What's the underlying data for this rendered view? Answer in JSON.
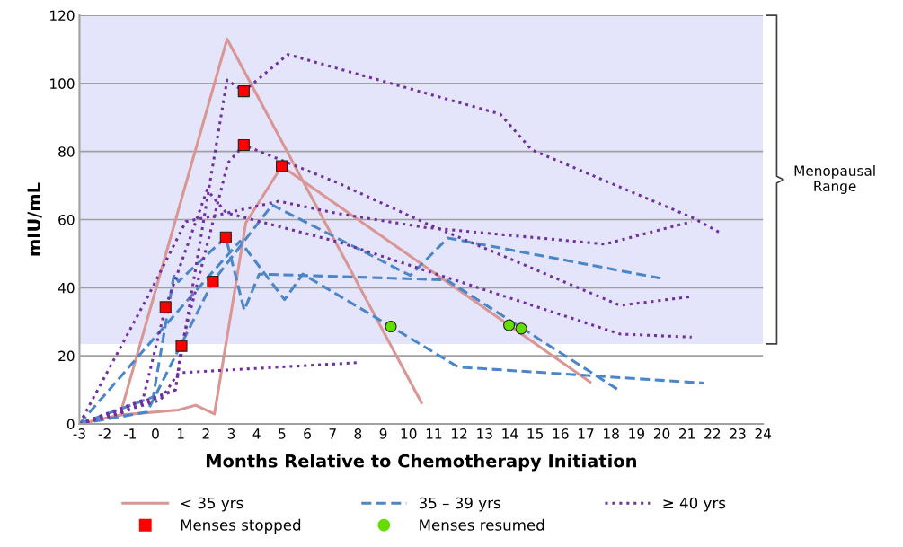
{
  "chart_data": {
    "type": "line",
    "xlabel": "Months Relative to Chemotherapy Initiation",
    "ylabel": "mIU/mL",
    "xlim": [
      -3,
      24
    ],
    "xticks": [
      -3,
      -2,
      -1,
      0,
      1,
      2,
      3,
      4,
      5,
      6,
      7,
      8,
      9,
      10,
      11,
      12,
      13,
      14,
      15,
      16,
      17,
      18,
      19,
      20,
      21,
      22,
      23,
      24
    ],
    "ylim": [
      0,
      120
    ],
    "yticks": [
      0,
      20,
      40,
      60,
      80,
      100,
      120
    ],
    "grid": "y",
    "legend": "bottom",
    "bands": [
      {
        "axis": "y",
        "from": 23.5,
        "to": 120,
        "label": "Menopausal Range",
        "color": "#e4e4fa"
      }
    ],
    "series": [
      {
        "name": "< 35 yrs",
        "color": "#d99694",
        "line_style": "solid",
        "x": [
          -3,
          -1.4,
          2.83,
          10.51
        ],
        "values": [
          0,
          2.6,
          113,
          6.2
        ]
      },
      {
        "color": "#d99694",
        "line_style": "solid",
        "x": [
          -3,
          -1.4,
          0.91,
          1.59,
          2.33,
          3.57,
          4.99,
          17.17
        ],
        "values": [
          0,
          2.6,
          4.1,
          5.5,
          2.9,
          59,
          75.7,
          12.3
        ]
      },
      {
        "name": "35 – 39 yrs",
        "color": "#4a86c8",
        "line_style": "dashed",
        "x": [
          -3,
          -0.33,
          2.27,
          4.61,
          7.2,
          10.07,
          11.55,
          20
        ],
        "values": [
          0,
          3.5,
          41.8,
          64.3,
          54.5,
          43.6,
          54.6,
          42.7
        ]
      },
      {
        "color": "#4a86c8",
        "line_style": "dashed",
        "x": [
          -3,
          -0.09,
          0.74,
          0.91,
          2.78,
          3.51,
          4.1,
          11.5,
          18.35
        ],
        "values": [
          0,
          7.9,
          44,
          41.8,
          54.8,
          33.4,
          44,
          42.3,
          9.7
        ]
      },
      {
        "color": "#4a86c8",
        "line_style": "dashed",
        "x": [
          -3,
          0.14,
          3.34,
          5.1,
          5.82,
          9.3,
          11.96,
          21.66
        ],
        "values": [
          0,
          26.8,
          53.7,
          36.5,
          44,
          28.6,
          16.7,
          12
        ]
      },
      {
        "name": "≥ 40 yrs",
        "color": "#7030a0",
        "line_style": "dotted",
        "x": [
          -3,
          0.79,
          2.83,
          3.49,
          5.23,
          13.62,
          14.86,
          21.18,
          22.37
        ],
        "values": [
          0,
          10,
          101,
          97.7,
          108.5,
          91,
          80.5,
          60.7,
          55.9
        ]
      },
      {
        "color": "#7030a0",
        "line_style": "dotted",
        "x": [
          -3,
          -1.4,
          0.79,
          1.03,
          2.86,
          3.49,
          7.2,
          10.66,
          18.35,
          21.18
        ],
        "values": [
          0,
          3,
          10,
          22.9,
          76.6,
          81.9,
          70.8,
          59,
          34.8,
          37.4
        ]
      },
      {
        "color": "#7030a0",
        "line_style": "dotted",
        "x": [
          -3,
          -0.5,
          0.4,
          2.04,
          2.8,
          7.2,
          18.35,
          21.18
        ],
        "values": [
          0,
          7,
          34.3,
          68.7,
          62,
          53.5,
          26.4,
          25.5
        ]
      },
      {
        "color": "#7030a0",
        "line_style": "dotted",
        "x": [
          -3,
          -0.21,
          1.2,
          2.86,
          4.87,
          7.2,
          10.66,
          17.76,
          21.18
        ],
        "values": [
          0,
          38.7,
          59.4,
          62,
          65.4,
          61.8,
          57.7,
          52.8,
          59.4
        ]
      },
      {
        "color": "#7030a0",
        "line_style": "dotted",
        "x": [
          -3,
          0.2,
          0.91,
          8.0
        ],
        "values": [
          0,
          7,
          15,
          18
        ]
      },
      {
        "name": "Menses stopped",
        "type": "scatter",
        "marker": "square",
        "color": "#ff0000",
        "x": [
          0.4,
          1.03,
          2.27,
          2.78,
          3.49,
          3.49,
          4.99
        ],
        "values": [
          34.3,
          22.9,
          41.8,
          54.8,
          97.7,
          81.9,
          75.7
        ]
      },
      {
        "name": "Menses resumed",
        "type": "scatter",
        "marker": "circle",
        "color": "#66dd00",
        "x": [
          9.3,
          13.97,
          14.45
        ],
        "values": [
          28.6,
          29,
          28
        ]
      }
    ]
  }
}
